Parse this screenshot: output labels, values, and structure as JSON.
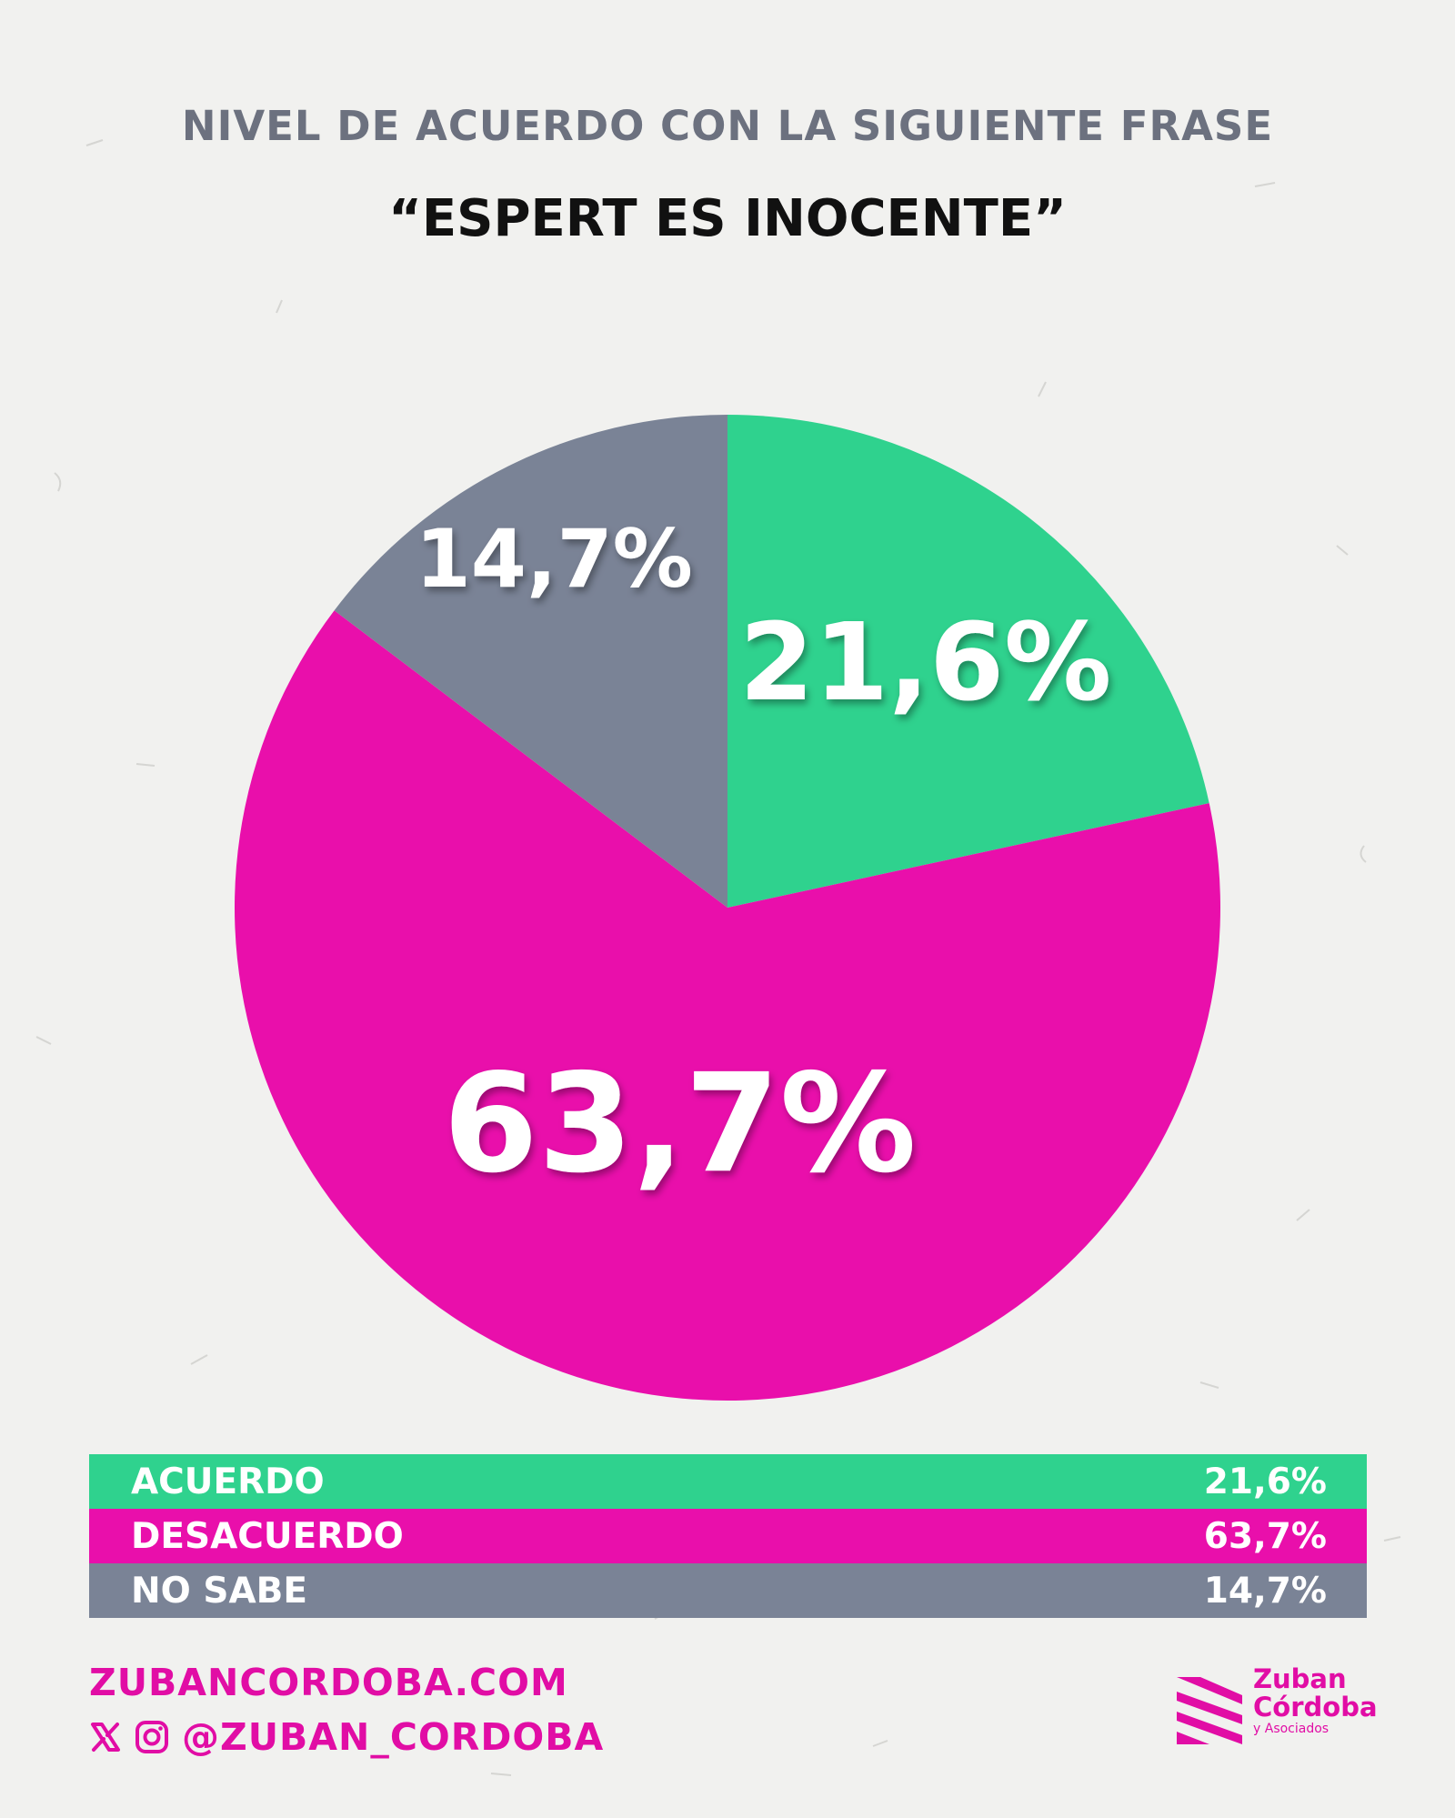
{
  "header": {
    "subtitle": "NIVEL DE ACUERDO CON LA SIGUIENTE FRASE",
    "title": "“ESPERT ES INOCENTE”"
  },
  "chart_data": {
    "type": "pie",
    "title": "“ESPERT ES INOCENTE”",
    "subtitle": "NIVEL DE ACUERDO CON LA SIGUIENTE FRASE",
    "start": "12 o'clock, clockwise",
    "slices": [
      {
        "name": "ACUERDO",
        "value": 21.6,
        "label": "21,6%",
        "color": "#2fd28e"
      },
      {
        "name": "DESACUERDO",
        "value": 63.7,
        "label": "63,7%",
        "color": "#e90fab"
      },
      {
        "name": "NO SABE",
        "value": 14.7,
        "label": "14,7%",
        "color": "#7a8396"
      }
    ]
  },
  "legend": {
    "rows": [
      {
        "name": "ACUERDO",
        "value": "21,6%",
        "color": "#2fd28e"
      },
      {
        "name": "DESACUERDO",
        "value": "63,7%",
        "color": "#e90fab"
      },
      {
        "name": "NO SABE",
        "value": "14,7%",
        "color": "#7a8396"
      }
    ]
  },
  "footer": {
    "website": "ZUBANCORDOBA.COM",
    "handle": "@ZUBAN_CORDOBA",
    "social_icons": [
      "x-icon",
      "instagram-icon"
    ],
    "logo": {
      "line1": "Zuban",
      "line2": "Córdoba",
      "line3": "y Asociados",
      "color": "#e10da5"
    }
  }
}
